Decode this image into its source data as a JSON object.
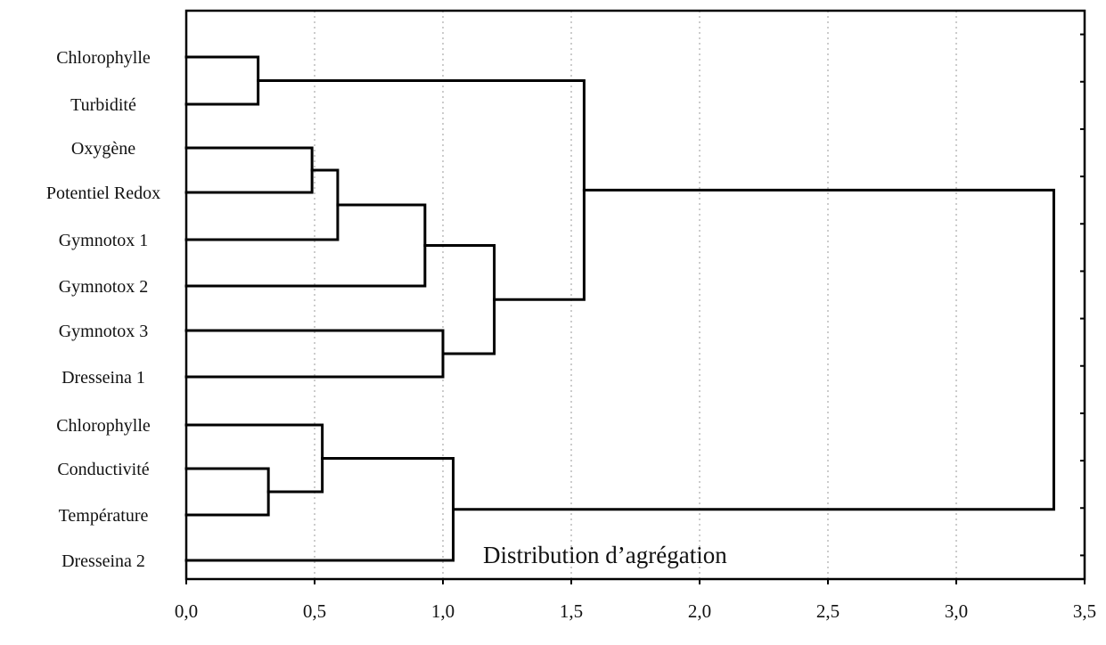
{
  "chart_data": {
    "type": "dendrogram",
    "orientation": "horizontal",
    "leaves": [
      "Chlorophylle",
      "Turbidité",
      "Oxygène",
      "Potentiel Redox",
      "Gymnotox 1",
      "Gymnotox 2",
      "Gymnotox 3",
      "Dresseina 1",
      "Chlorophylle",
      "Conductivité",
      "Température",
      "Dresseina 2"
    ],
    "merges": [
      {
        "a": "L0",
        "b": "L1",
        "distance": 0.28
      },
      {
        "a": "L2",
        "b": "L3",
        "distance": 0.49
      },
      {
        "a": "M1",
        "b": "L4",
        "distance": 0.59
      },
      {
        "a": "M2",
        "b": "L5",
        "distance": 0.93
      },
      {
        "a": "L6",
        "b": "L7",
        "distance": 1.0
      },
      {
        "a": "M3",
        "b": "M4",
        "distance": 1.2
      },
      {
        "a": "M0",
        "b": "M5",
        "distance": 1.55
      },
      {
        "a": "L9",
        "b": "L10",
        "distance": 0.32
      },
      {
        "a": "L8",
        "b": "M7",
        "distance": 0.53
      },
      {
        "a": "M8",
        "b": "L11",
        "distance": 1.04
      },
      {
        "a": "M6",
        "b": "M9",
        "distance": 3.38
      }
    ],
    "x_ticks": [
      "0,0",
      "0,5",
      "1,0",
      "1,5",
      "2,0",
      "2,5",
      "3,0",
      "3,5"
    ],
    "xlim": [
      0,
      3.5
    ],
    "grid": true,
    "annotation": "Distribution d’agrégation",
    "title": "",
    "xlabel": "",
    "ylabel": ""
  }
}
